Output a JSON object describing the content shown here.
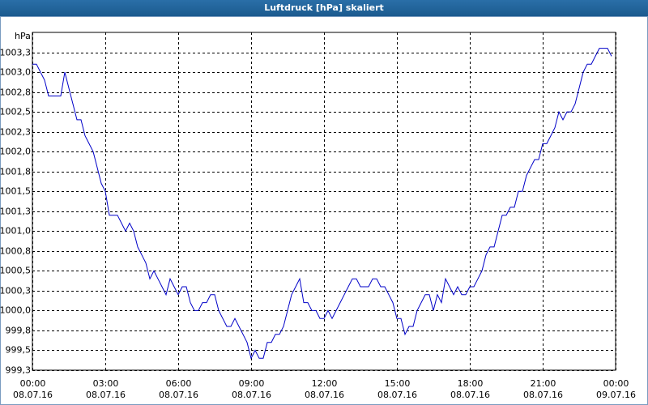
{
  "chart_data": {
    "type": "line",
    "title": "Luftdruck [hPa] skaliert",
    "y_label": "hPa",
    "color": "#0000c8",
    "grid": true,
    "x": [
      0,
      10,
      20,
      30,
      40,
      50,
      60,
      70,
      80,
      90,
      100,
      110,
      120,
      130,
      140,
      150,
      160,
      170,
      180,
      190,
      200,
      210,
      220,
      230,
      240,
      250,
      260,
      270,
      280,
      290,
      300,
      310,
      320,
      330,
      340,
      350,
      360,
      370,
      380,
      390,
      400,
      410,
      420,
      430,
      440,
      450,
      460,
      470,
      480,
      490,
      500,
      510,
      520,
      530,
      540,
      550,
      560,
      570,
      580,
      590,
      600,
      610,
      620,
      630,
      640,
      650,
      660,
      670,
      680,
      690,
      700,
      710,
      720,
      730,
      740,
      750,
      760,
      770,
      780,
      790,
      800,
      810,
      820,
      830,
      840,
      850,
      860,
      870,
      880,
      890,
      900,
      910,
      920,
      930,
      940,
      950,
      960,
      970,
      980,
      990,
      1000,
      1010,
      1020,
      1030,
      1040,
      1050,
      1060,
      1070,
      1080,
      1090,
      1100,
      1110,
      1120,
      1130,
      1140,
      1150,
      1160,
      1170,
      1180,
      1190,
      1200,
      1210,
      1220,
      1230,
      1240,
      1250,
      1260,
      1270,
      1280,
      1290,
      1300,
      1310,
      1320,
      1330,
      1340,
      1350,
      1360,
      1370,
      1380,
      1390,
      1400,
      1410,
      1420,
      1430
    ],
    "values": [
      1003.1,
      1003.1,
      1003.0,
      1002.9,
      1002.7,
      1002.7,
      1002.7,
      1002.7,
      1003.0,
      1002.8,
      1002.6,
      1002.4,
      1002.4,
      1002.2,
      1002.1,
      1002.0,
      1001.8,
      1001.6,
      1001.5,
      1001.2,
      1001.2,
      1001.2,
      1001.1,
      1001.0,
      1001.1,
      1001.0,
      1000.8,
      1000.7,
      1000.6,
      1000.4,
      1000.5,
      1000.4,
      1000.3,
      1000.2,
      1000.4,
      1000.3,
      1000.2,
      1000.3,
      1000.3,
      1000.1,
      1000.0,
      1000.0,
      1000.1,
      1000.1,
      1000.2,
      1000.2,
      1000.0,
      999.9,
      999.8,
      999.8,
      999.9,
      999.8,
      999.7,
      999.6,
      999.4,
      999.5,
      999.4,
      999.4,
      999.6,
      999.6,
      999.7,
      999.7,
      999.8,
      1000.0,
      1000.2,
      1000.3,
      1000.4,
      1000.1,
      1000.1,
      1000.0,
      1000.0,
      999.9,
      999.9,
      1000.0,
      999.9,
      1000.0,
      1000.1,
      1000.2,
      1000.3,
      1000.4,
      1000.4,
      1000.3,
      1000.3,
      1000.3,
      1000.4,
      1000.4,
      1000.3,
      1000.3,
      1000.2,
      1000.1,
      999.9,
      999.9,
      999.7,
      999.8,
      999.8,
      1000.0,
      1000.1,
      1000.2,
      1000.2,
      1000.0,
      1000.2,
      1000.1,
      1000.4,
      1000.3,
      1000.2,
      1000.3,
      1000.2,
      1000.2,
      1000.3,
      1000.3,
      1000.4,
      1000.5,
      1000.7,
      1000.8,
      1000.8,
      1001.0,
      1001.2,
      1001.2,
      1001.3,
      1001.3,
      1001.5,
      1001.5,
      1001.7,
      1001.8,
      1001.9,
      1001.9,
      1002.1,
      1002.1,
      1002.2,
      1002.3,
      1002.5,
      1002.4,
      1002.5,
      1002.5,
      1002.6,
      1002.8,
      1003.0,
      1003.1,
      1003.1,
      1003.2,
      1003.3,
      1003.3,
      1003.3,
      1003.2
    ],
    "xlim": [
      0,
      1440
    ],
    "xticks": [
      {
        "value": 0,
        "label": "00:00\n08.07.16"
      },
      {
        "value": 180,
        "label": "03:00\n08.07.16"
      },
      {
        "value": 360,
        "label": "06:00\n08.07.16"
      },
      {
        "value": 540,
        "label": "09:00\n08.07.16"
      },
      {
        "value": 720,
        "label": "12:00\n08.07.16"
      },
      {
        "value": 900,
        "label": "15:00\n08.07.16"
      },
      {
        "value": 1080,
        "label": "18:00\n08.07.16"
      },
      {
        "value": 1260,
        "label": "21:00\n08.07.16"
      },
      {
        "value": 1440,
        "label": "00:00\n09.07.16"
      }
    ],
    "ylim": [
      999.25,
      1003.5
    ],
    "yticks": [
      {
        "value": 999.25,
        "label": "999,3"
      },
      {
        "value": 999.5,
        "label": "999,5"
      },
      {
        "value": 999.75,
        "label": "999,8"
      },
      {
        "value": 1000.0,
        "label": "1000,0"
      },
      {
        "value": 1000.25,
        "label": "1000,3"
      },
      {
        "value": 1000.5,
        "label": "1000,5"
      },
      {
        "value": 1000.75,
        "label": "1000,8"
      },
      {
        "value": 1001.0,
        "label": "1001,0"
      },
      {
        "value": 1001.25,
        "label": "1001,3"
      },
      {
        "value": 1001.5,
        "label": "1001,5"
      },
      {
        "value": 1001.75,
        "label": "1001,8"
      },
      {
        "value": 1002.0,
        "label": "1002,0"
      },
      {
        "value": 1002.25,
        "label": "1002,3"
      },
      {
        "value": 1002.5,
        "label": "1002,5"
      },
      {
        "value": 1002.75,
        "label": "1002,8"
      },
      {
        "value": 1003.0,
        "label": "1003,0"
      },
      {
        "value": 1003.25,
        "label": "1003,3"
      }
    ]
  }
}
